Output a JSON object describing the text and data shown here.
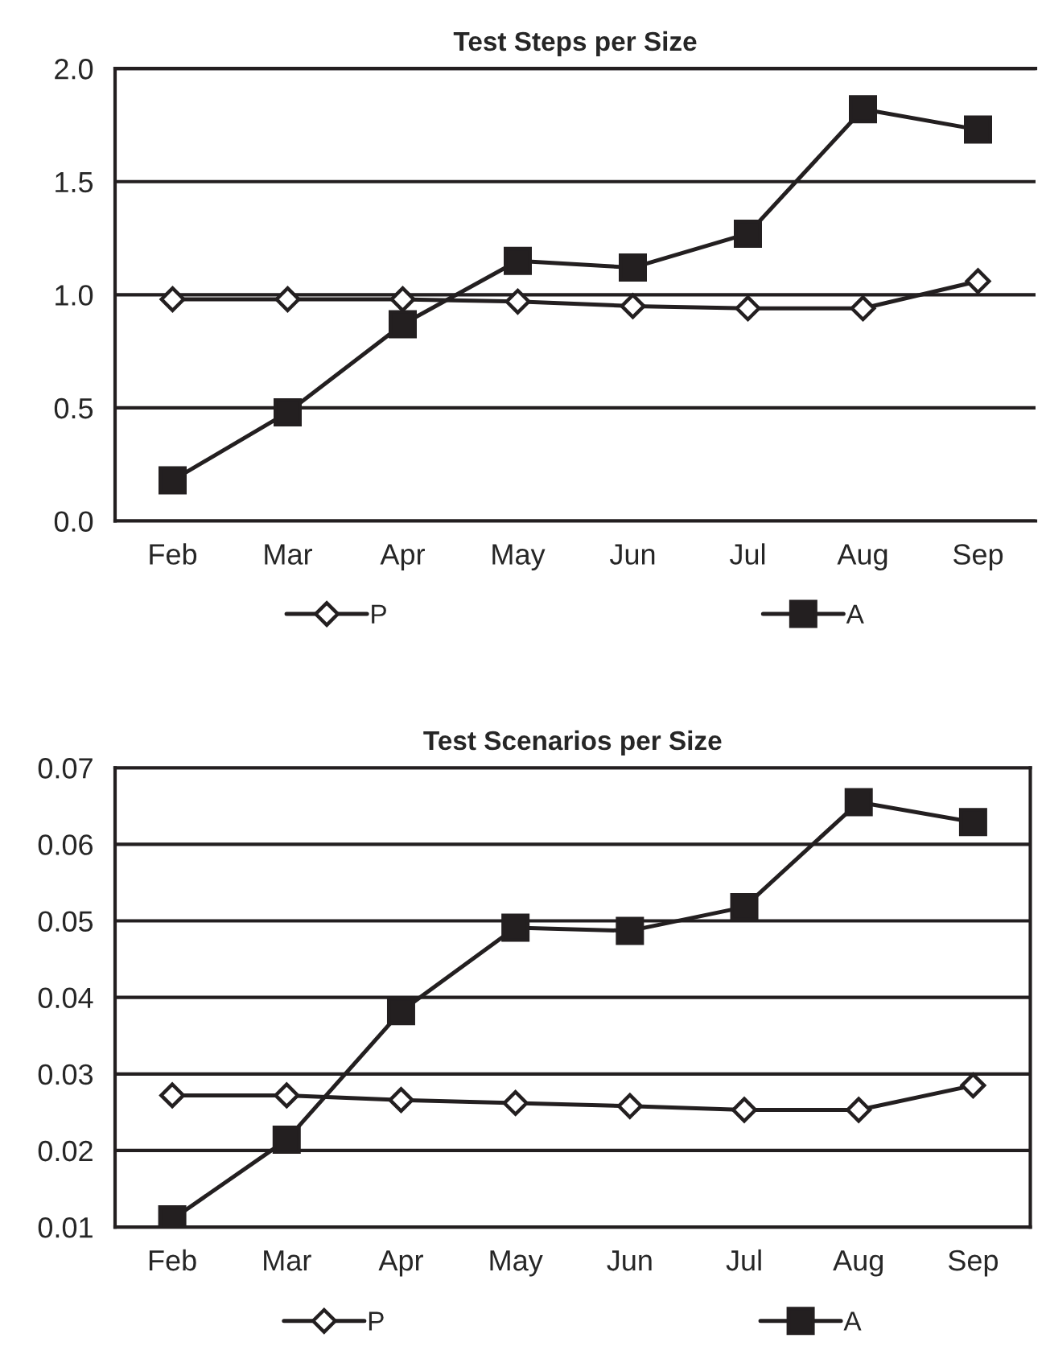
{
  "chart_data": [
    {
      "type": "line",
      "title": "Test Steps per Size",
      "categories": [
        "Feb",
        "Mar",
        "Apr",
        "May",
        "Jun",
        "Jul",
        "Aug",
        "Sep"
      ],
      "series": [
        {
          "name": "P",
          "color": "#231f20",
          "marker": "diamond",
          "values": [
            0.98,
            0.98,
            0.98,
            0.97,
            0.95,
            0.94,
            0.94,
            1.06
          ]
        },
        {
          "name": "A",
          "color": "#231f20",
          "marker": "square",
          "values": [
            0.18,
            0.48,
            0.87,
            1.15,
            1.12,
            1.27,
            1.82,
            1.73
          ]
        }
      ],
      "ylim": [
        0,
        2
      ],
      "yticks": [
        {
          "value": 0,
          "label": "0.0"
        },
        0.5,
        {
          "value": 1,
          "label": "1.0"
        },
        1.5,
        {
          "value": 2,
          "label": "2.0"
        }
      ],
      "grid": "y",
      "legend": "bottom"
    },
    {
      "type": "line",
      "title": "Test Scenarios per Size",
      "categories": [
        "Feb",
        "Mar",
        "Apr",
        "May",
        "Jun",
        "Jul",
        "Aug",
        "Sep"
      ],
      "series": [
        {
          "name": "P",
          "color": "#231f20",
          "marker": "diamond",
          "values": [
            0.0272,
            0.0272,
            0.0266,
            0.0262,
            0.0258,
            0.0253,
            0.0253,
            0.0285
          ]
        },
        {
          "name": "A",
          "color": "#231f20",
          "marker": "square",
          "values": [
            0.011,
            0.0214,
            0.0382,
            0.0491,
            0.0487,
            0.0518,
            0.0655,
            0.0629
          ]
        }
      ],
      "ylim": [
        0.01,
        0.07
      ],
      "yticks": [
        0.01,
        0.02,
        0.03,
        0.04,
        0.05,
        0.06,
        0.07
      ],
      "grid": "y",
      "legend": "bottom"
    }
  ]
}
